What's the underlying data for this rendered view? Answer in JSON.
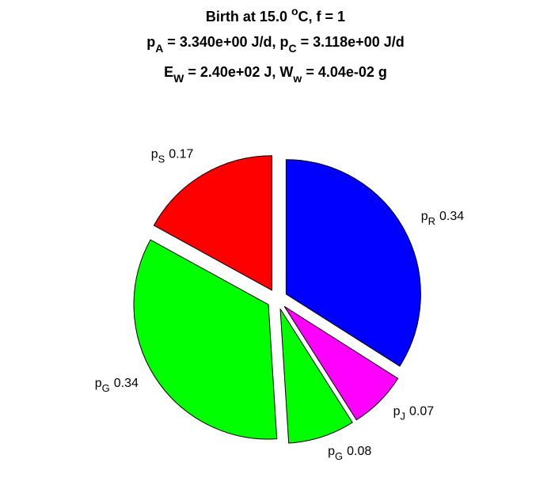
{
  "chart_data": {
    "type": "pie",
    "title": [
      [
        "Birth at 15.0 ",
        {
          "sup": "o"
        },
        "C, f = 1"
      ],
      [
        {
          "main": "p"
        },
        {
          "sub": "A"
        },
        " = 3.340e+00 J/d, p",
        {
          "sub": "C"
        },
        " = 3.118e+00 J/d"
      ],
      [
        "E",
        {
          "sub": "W"
        },
        " = 2.40e+02 J, W",
        {
          "sub": "w"
        },
        " = 4.04e-02 g"
      ]
    ],
    "categories": [
      {
        "main": "p",
        "sub": "R"
      },
      {
        "main": "p",
        "sub": "J"
      },
      {
        "main": "p",
        "sub": "G"
      },
      {
        "main": "p",
        "sub": "G"
      },
      {
        "main": "p",
        "sub": "S"
      }
    ],
    "values": [
      0.34,
      0.07,
      0.08,
      0.34,
      0.17
    ],
    "colors": [
      "#0000ff",
      "#ff00ff",
      "#00ff00",
      "#00ff00",
      "#ff0000"
    ],
    "exploded": true
  }
}
